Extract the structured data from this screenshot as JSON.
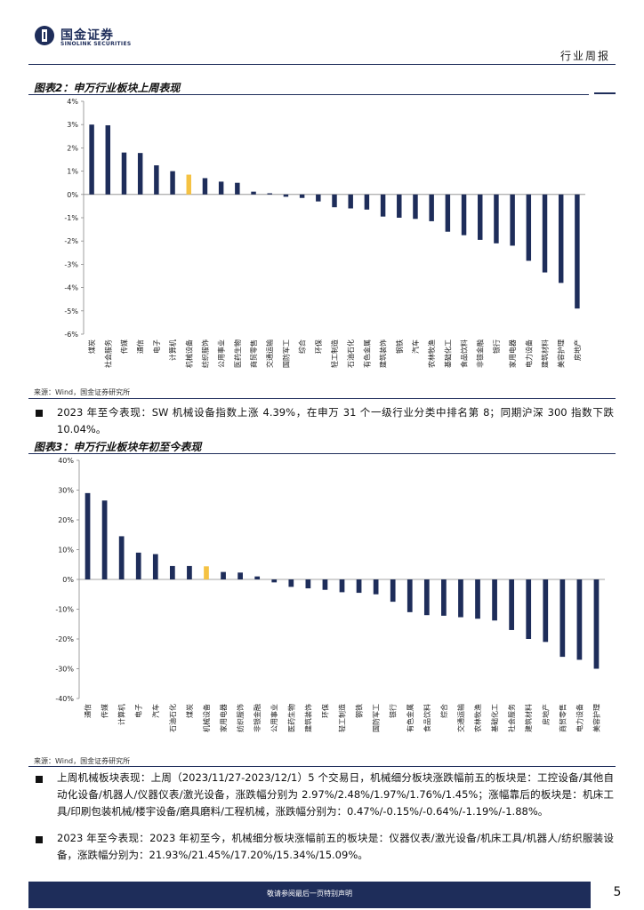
{
  "header": {
    "brand_cn": "国金证券",
    "brand_en": "SINOLINK SECURITIES",
    "report_type": "行业周报",
    "accent_color": "#1e2d5a"
  },
  "figure2": {
    "title": "图表2：申万行业板块上周表现",
    "source": "来源：Wind，国金证券研究所",
    "chart_data": {
      "type": "bar",
      "categories": [
        "煤炭",
        "社会服务",
        "传媒",
        "通信",
        "电子",
        "计算机",
        "机械设备",
        "纺织服饰",
        "公用事业",
        "医药生物",
        "商贸零售",
        "交通运输",
        "国防军工",
        "综合",
        "环保",
        "轻工制造",
        "石油石化",
        "有色金属",
        "建筑装饰",
        "钢铁",
        "汽车",
        "农林牧渔",
        "基础化工",
        "食品饮料",
        "非银金融",
        "银行",
        "家用电器",
        "电力设备",
        "建筑材料",
        "美容护理",
        "房地产"
      ],
      "values": [
        3.0,
        2.97,
        1.8,
        1.78,
        1.25,
        1.0,
        0.85,
        0.7,
        0.55,
        0.5,
        0.12,
        0.05,
        -0.1,
        -0.15,
        -0.3,
        -0.55,
        -0.6,
        -0.65,
        -0.95,
        -1.0,
        -1.05,
        -1.15,
        -1.6,
        -1.75,
        -1.95,
        -2.1,
        -2.2,
        -2.85,
        -3.35,
        -3.8,
        -4.9
      ],
      "highlight": "机械设备",
      "ylim": [
        -6,
        4
      ],
      "yticks": [
        "4%",
        "3%",
        "2%",
        "1%",
        "0%",
        "-1%",
        "-2%",
        "-3%",
        "-4%",
        "-5%",
        "-6%"
      ],
      "bar_color": "#1e2d5a",
      "highlight_color": "#f5c243"
    }
  },
  "bullet1": "2023 年至今表现：SW 机械设备指数上涨 4.39%，在申万 31 个一级行业分类中排名第 8；同期沪深 300 指数下跌 10.04%。",
  "figure3": {
    "title": "图表3：申万行业板块年初至今表现",
    "source": "来源：Wind，国金证券研究所",
    "chart_data": {
      "type": "bar",
      "categories": [
        "通信",
        "传媒",
        "计算机",
        "电子",
        "汽车",
        "石油石化",
        "煤炭",
        "机械设备",
        "家用电器",
        "纺织服饰",
        "非银金融",
        "公用事业",
        "医药生物",
        "建筑装饰",
        "环保",
        "轻工制造",
        "钢铁",
        "国防军工",
        "银行",
        "有色金属",
        "食品饮料",
        "综合",
        "交通运输",
        "农林牧渔",
        "基础化工",
        "社会服务",
        "建筑材料",
        "房地产",
        "商贸零售",
        "电力设备",
        "美容护理"
      ],
      "values": [
        29,
        26.5,
        14.5,
        9,
        8.5,
        4.5,
        4.5,
        4.39,
        2.5,
        2.3,
        1.0,
        -1.0,
        -2.5,
        -3,
        -3.5,
        -4.3,
        -4.5,
        -5,
        -7.5,
        -11,
        -12,
        -12.2,
        -12.7,
        -13.2,
        -13.8,
        -17,
        -20,
        -21,
        -26,
        -27,
        -30
      ],
      "highlight": "机械设备",
      "ylim": [
        -40,
        40
      ],
      "yticks": [
        "40%",
        "30%",
        "20%",
        "10%",
        "0%",
        "-10%",
        "-20%",
        "-30%",
        "-40%"
      ],
      "bar_color": "#1e2d5a",
      "highlight_color": "#f5c243"
    }
  },
  "bullet2": "上周机械板块表现：上周（2023/11/27-2023/12/1）5 个交易日，机械细分板块涨跌幅前五的板块是：工控设备/其他自动化设备/机器人/仪器仪表/激光设备，涨跌幅分别为 2.97%/2.48%/1.97%/1.76%/1.45%；涨幅靠后的板块是：机床工具/印刷包装机械/楼宇设备/磨具磨料/工程机械，涨跌幅分别为：0.47%/-0.15%/-0.64%/-1.19%/-1.88%。",
  "bullet3": "2023 年至今表现：2023 年初至今，机械细分板块涨幅前五的板块是：仪器仪表/激光设备/机床工具/机器人/纺织服装设备，涨跌幅分别为：21.93%/21.45%/17.20%/15.34%/15.09%。",
  "footer": {
    "disclaimer": "敬请参阅最后一页特别声明",
    "page_number": "5"
  }
}
